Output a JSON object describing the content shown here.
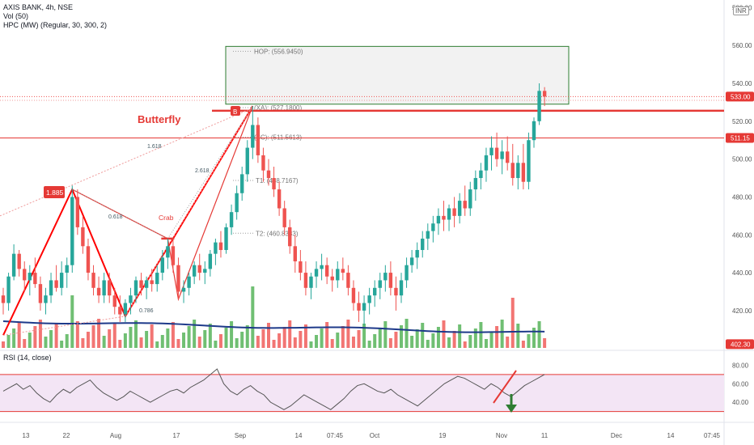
{
  "header": {
    "symbol_line": "AXIS BANK, 4h, NSE",
    "vol_line": "Vol (50)",
    "hpc_line": "HPC (MW) (Regular, 30, 300, 2)",
    "currency": "INR"
  },
  "rsi_panel": {
    "label": "RSI (14, close)"
  },
  "colors": {
    "bull": "#26a69a",
    "bear": "#ef5350",
    "volume_bull": "#4caf50",
    "ma_line": "#1e3a8a",
    "pattern_red": "#ff0000",
    "rsi_line": "#555555",
    "rsi_band": "#f3e5f5",
    "target_box_fill": "#f2f2f2",
    "target_box_border": "#2e7d32",
    "green_arrow": "#2e7d32"
  },
  "chart_data": {
    "type": "candlestick",
    "price_axis": {
      "ticks": [
        580,
        560,
        540,
        520,
        500,
        480,
        460,
        440,
        420
      ],
      "range": [
        400.3,
        584
      ]
    },
    "time_axis": [
      "13",
      "22",
      "Aug",
      "17",
      "Sep",
      "14",
      "07:45",
      "Oct",
      "19",
      "Nov",
      "11",
      "Dec",
      "14",
      "07:45"
    ],
    "price_badges": {
      "last": "533.00",
      "level": "511.15",
      "bottom": "402.30"
    },
    "levels": {
      "hop": {
        "label": "HOP: (556.9450)",
        "value": 556.945
      },
      "xa": {
        "label": "(XA): (527.1800)",
        "value": 527.18
      },
      "bc": {
        "label": "(BC): (511.5613)",
        "value": 511.5613
      },
      "t1": {
        "label": "T1: (488.7167)",
        "value": 488.7167
      },
      "t2": {
        "label": "T2: (460.8333)",
        "value": 460.8333
      },
      "hline_511": 511.15,
      "hline_525": 525.5
    },
    "target_zone": {
      "from": 529,
      "to": 559.5
    },
    "pattern_labels": {
      "butterfly": "Butterfly",
      "crab": "Crab",
      "ratio_1885": "1.885",
      "ratio_0618": "0.618",
      "ratio_1618": "1.618",
      "ratio_2618": "2.618",
      "ratio_0786": "0.786",
      "point_b": "B"
    },
    "butterfly_points": [
      {
        "bar": 0,
        "price": 407
      },
      {
        "bar": 13,
        "price": 484
      },
      {
        "bar": 23,
        "price": 417
      },
      {
        "bar": 32,
        "price": 458
      },
      {
        "bar": 47,
        "price": 528
      }
    ],
    "crab_points": [
      {
        "bar": 13,
        "price": 484
      },
      {
        "bar": 31,
        "price": 458
      },
      {
        "bar": 33,
        "price": 426
      },
      {
        "bar": 47,
        "price": 528
      }
    ],
    "candles": [
      [
        428,
        432,
        418,
        424
      ],
      [
        424,
        440,
        420,
        438
      ],
      [
        438,
        455,
        436,
        450
      ],
      [
        450,
        452,
        438,
        442
      ],
      [
        442,
        446,
        430,
        436
      ],
      [
        436,
        444,
        428,
        440
      ],
      [
        440,
        448,
        432,
        434
      ],
      [
        434,
        438,
        420,
        424
      ],
      [
        424,
        432,
        418,
        428
      ],
      [
        428,
        440,
        424,
        436
      ],
      [
        436,
        444,
        430,
        432
      ],
      [
        432,
        446,
        428,
        440
      ],
      [
        440,
        448,
        432,
        444
      ],
      [
        444,
        486,
        440,
        480
      ],
      [
        480,
        484,
        460,
        464
      ],
      [
        464,
        470,
        450,
        454
      ],
      [
        454,
        458,
        436,
        440
      ],
      [
        440,
        444,
        428,
        432
      ],
      [
        432,
        438,
        424,
        428
      ],
      [
        428,
        440,
        424,
        436
      ],
      [
        436,
        440,
        424,
        428
      ],
      [
        428,
        432,
        418,
        422
      ],
      [
        422,
        428,
        414,
        418
      ],
      [
        418,
        426,
        414,
        424
      ],
      [
        424,
        432,
        418,
        428
      ],
      [
        428,
        438,
        424,
        436
      ],
      [
        436,
        440,
        428,
        432
      ],
      [
        432,
        438,
        426,
        436
      ],
      [
        436,
        442,
        430,
        434
      ],
      [
        434,
        444,
        430,
        440
      ],
      [
        440,
        452,
        436,
        448
      ],
      [
        448,
        458,
        442,
        454
      ],
      [
        454,
        458,
        440,
        444
      ],
      [
        444,
        448,
        426,
        430
      ],
      [
        430,
        436,
        424,
        432
      ],
      [
        432,
        440,
        428,
        438
      ],
      [
        438,
        446,
        434,
        444
      ],
      [
        444,
        450,
        436,
        440
      ],
      [
        440,
        446,
        434,
        442
      ],
      [
        442,
        452,
        438,
        450
      ],
      [
        450,
        458,
        444,
        456
      ],
      [
        456,
        462,
        448,
        452
      ],
      [
        452,
        466,
        450,
        464
      ],
      [
        464,
        476,
        460,
        472
      ],
      [
        472,
        486,
        468,
        482
      ],
      [
        482,
        496,
        478,
        492
      ],
      [
        492,
        510,
        488,
        506
      ],
      [
        506,
        528,
        500,
        518
      ],
      [
        518,
        522,
        498,
        502
      ],
      [
        502,
        506,
        488,
        494
      ],
      [
        494,
        500,
        486,
        490
      ],
      [
        490,
        496,
        480,
        484
      ],
      [
        484,
        488,
        470,
        474
      ],
      [
        474,
        478,
        460,
        464
      ],
      [
        464,
        468,
        450,
        454
      ],
      [
        454,
        460,
        440,
        446
      ],
      [
        446,
        452,
        436,
        440
      ],
      [
        440,
        446,
        428,
        432
      ],
      [
        432,
        440,
        426,
        438
      ],
      [
        438,
        446,
        432,
        442
      ],
      [
        442,
        450,
        436,
        444
      ],
      [
        444,
        448,
        434,
        438
      ],
      [
        438,
        442,
        430,
        436
      ],
      [
        436,
        446,
        432,
        442
      ],
      [
        442,
        448,
        436,
        440
      ],
      [
        440,
        444,
        428,
        432
      ],
      [
        432,
        436,
        420,
        424
      ],
      [
        424,
        430,
        414,
        420
      ],
      [
        420,
        428,
        412,
        424
      ],
      [
        424,
        432,
        418,
        428
      ],
      [
        428,
        436,
        422,
        432
      ],
      [
        432,
        440,
        426,
        436
      ],
      [
        436,
        444,
        430,
        440
      ],
      [
        440,
        446,
        428,
        432
      ],
      [
        432,
        438,
        420,
        428
      ],
      [
        428,
        440,
        424,
        436
      ],
      [
        436,
        448,
        432,
        444
      ],
      [
        444,
        452,
        440,
        448
      ],
      [
        448,
        456,
        442,
        452
      ],
      [
        452,
        462,
        448,
        458
      ],
      [
        458,
        466,
        452,
        462
      ],
      [
        462,
        470,
        456,
        466
      ],
      [
        466,
        474,
        460,
        470
      ],
      [
        470,
        478,
        462,
        468
      ],
      [
        468,
        476,
        462,
        474
      ],
      [
        474,
        480,
        464,
        470
      ],
      [
        470,
        482,
        466,
        478
      ],
      [
        478,
        486,
        470,
        474
      ],
      [
        474,
        488,
        470,
        484
      ],
      [
        484,
        494,
        478,
        490
      ],
      [
        490,
        498,
        484,
        494
      ],
      [
        494,
        506,
        488,
        502
      ],
      [
        502,
        512,
        494,
        506
      ],
      [
        506,
        514,
        496,
        500
      ],
      [
        500,
        510,
        492,
        504
      ],
      [
        504,
        512,
        494,
        498
      ],
      [
        498,
        508,
        486,
        490
      ],
      [
        490,
        502,
        484,
        498
      ],
      [
        498,
        508,
        484,
        488
      ],
      [
        488,
        514,
        484,
        510
      ],
      [
        510,
        522,
        506,
        520
      ],
      [
        520,
        540,
        518,
        536
      ],
      [
        536,
        538,
        528,
        533
      ]
    ],
    "rsi": {
      "band": [
        30,
        70
      ],
      "ticks": [
        80,
        60,
        40
      ],
      "values": [
        52,
        56,
        60,
        54,
        58,
        50,
        44,
        40,
        48,
        54,
        50,
        56,
        60,
        64,
        56,
        50,
        46,
        42,
        46,
        52,
        48,
        44,
        40,
        44,
        48,
        52,
        54,
        50,
        56,
        60,
        64,
        70,
        76,
        60,
        52,
        48,
        54,
        58,
        52,
        48,
        40,
        36,
        32,
        36,
        42,
        48,
        44,
        40,
        36,
        32,
        38,
        44,
        52,
        58,
        60,
        56,
        52,
        50,
        54,
        48,
        44,
        40,
        36,
        42,
        48,
        54,
        60,
        64,
        68,
        66,
        62,
        58,
        54,
        60,
        56,
        50,
        46,
        52,
        58,
        62,
        66,
        70
      ]
    }
  }
}
